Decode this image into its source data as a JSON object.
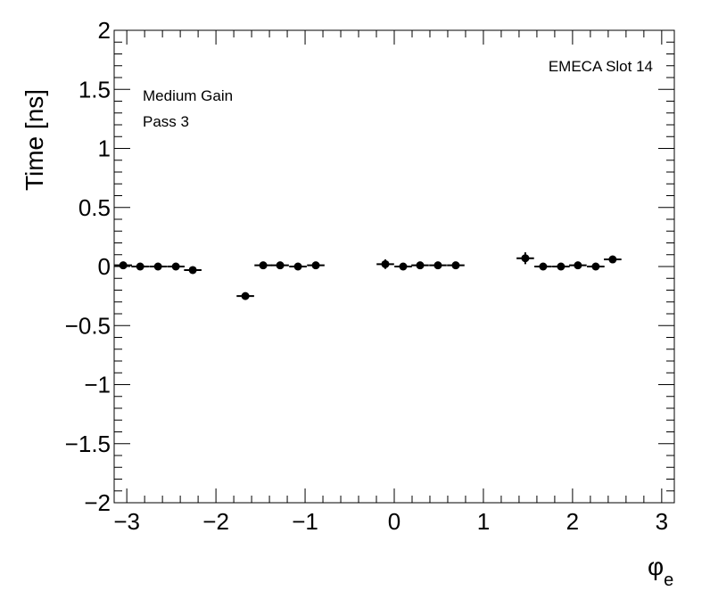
{
  "chart_data": {
    "type": "scatter",
    "title": "",
    "xlabel": "φ",
    "xlabel_subscript": "e",
    "ylabel": "Time [ns]",
    "xlim": [
      -3.14159,
      3.14159
    ],
    "ylim": [
      -2,
      2
    ],
    "x_ticks": [
      -3,
      -2,
      -1,
      0,
      1,
      2,
      3
    ],
    "x_tick_labels": [
      "−3",
      "−2",
      "−1",
      "0",
      "1",
      "2",
      "3"
    ],
    "y_ticks": [
      -2,
      -1.5,
      -1,
      -0.5,
      0,
      0.5,
      1,
      1.5,
      2
    ],
    "y_tick_labels": [
      "−2",
      "−1.5",
      "−1",
      "−0.5",
      "0",
      "0.5",
      "1",
      "1.5",
      "2"
    ],
    "grid": false,
    "annotations": {
      "label_right": "EMECA Slot 14",
      "label_line1": "Medium Gain",
      "label_line2": "Pass 3"
    },
    "series": [
      {
        "x": [
          -3.04,
          -2.85,
          -2.65,
          -2.45,
          -2.26,
          -1.67,
          -1.47,
          -1.28,
          -1.08,
          -0.88,
          -0.1,
          0.1,
          0.29,
          0.49,
          0.69,
          1.47,
          1.67,
          1.87,
          2.06,
          2.26,
          2.45
        ],
        "y": [
          0.01,
          0.0,
          0.0,
          0.0,
          -0.03,
          -0.25,
          0.01,
          0.01,
          0.0,
          0.01,
          0.02,
          0.0,
          0.01,
          0.01,
          0.01,
          0.07,
          0.0,
          0.0,
          0.01,
          0.0,
          0.06
        ],
        "xerr": [
          0.098,
          0.098,
          0.098,
          0.098,
          0.098,
          0.098,
          0.098,
          0.098,
          0.098,
          0.098,
          0.098,
          0.098,
          0.098,
          0.098,
          0.098,
          0.098,
          0.098,
          0.098,
          0.098,
          0.098,
          0.098
        ],
        "yerr": [
          0.01,
          0.01,
          0.01,
          0.01,
          0.02,
          0.02,
          0.01,
          0.01,
          0.01,
          0.01,
          0.04,
          0.01,
          0.01,
          0.01,
          0.01,
          0.05,
          0.01,
          0.01,
          0.01,
          0.01,
          0.03
        ]
      }
    ]
  }
}
